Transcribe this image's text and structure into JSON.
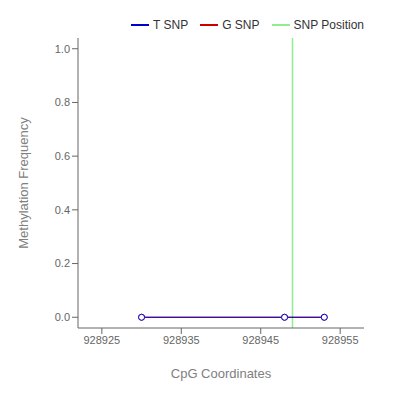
{
  "chart_data": {
    "type": "line",
    "xlabel": "CpG Coordinates",
    "ylabel": "Methylation Frequency",
    "xlim": [
      928922,
      928958
    ],
    "xticks": [
      928925,
      928935,
      928945,
      928955
    ],
    "ylim": [
      -0.04,
      1.04
    ],
    "yticks": [
      {
        "value": 0.0,
        "label": "0.0"
      },
      0.2,
      0.4,
      0.6,
      0.8,
      {
        "value": 1.0,
        "label": "1.0"
      }
    ],
    "x": [
      928930,
      928948,
      928953
    ],
    "series": [
      {
        "name": "T SNP",
        "color": "#0000CC",
        "marker": "circle",
        "values": [
          0.0,
          0.0,
          0.0
        ]
      },
      {
        "name": "G SNP",
        "color": "#CC0000",
        "marker": "circle",
        "values": [
          0.0,
          0.0,
          0.0
        ]
      }
    ],
    "vlines": [
      {
        "x": 928949,
        "name": "SNP Position",
        "color": "#90EE90"
      }
    ],
    "grid": false,
    "legend": "upper right"
  }
}
